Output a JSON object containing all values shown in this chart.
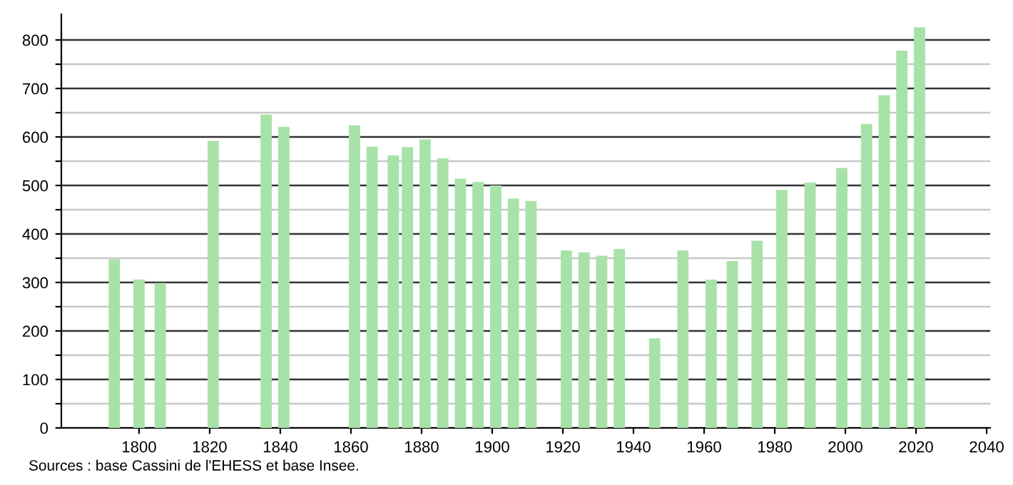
{
  "chart_data": {
    "type": "bar",
    "x": [
      1793,
      1800,
      1806,
      1821,
      1836,
      1841,
      1861,
      1866,
      1872,
      1876,
      1881,
      1886,
      1891,
      1896,
      1901,
      1906,
      1911,
      1921,
      1926,
      1931,
      1936,
      1946,
      1954,
      1962,
      1968,
      1975,
      1982,
      1990,
      1999,
      2006,
      2011,
      2016,
      2021
    ],
    "values": [
      348,
      306,
      299,
      592,
      646,
      621,
      624,
      580,
      562,
      579,
      595,
      556,
      514,
      507,
      500,
      473,
      468,
      366,
      362,
      355,
      369,
      185,
      366,
      306,
      344,
      386,
      491,
      506,
      536,
      627,
      686,
      778,
      826
    ],
    "color": "#a8e2a8",
    "xlim": [
      1778,
      2041
    ],
    "xticks": [
      1800,
      1820,
      1840,
      1860,
      1880,
      1900,
      1920,
      1940,
      1960,
      1980,
      2000,
      2020,
      2040
    ],
    "ylim": [
      0,
      853
    ],
    "yticks": [
      0,
      {
        "value": 50,
        "label": null
      },
      100,
      {
        "value": 150,
        "label": null
      },
      200,
      {
        "value": 250,
        "label": null
      },
      300,
      {
        "value": 350,
        "label": null
      },
      400,
      {
        "value": 450,
        "label": null
      },
      500,
      {
        "value": 550,
        "label": null
      },
      600,
      {
        "value": 650,
        "label": null
      },
      700,
      {
        "value": 750,
        "label": null
      },
      800
    ],
    "grid": "y",
    "annotations": [
      "Sources : base Cassini de l'EHESS et base Insee."
    ]
  }
}
